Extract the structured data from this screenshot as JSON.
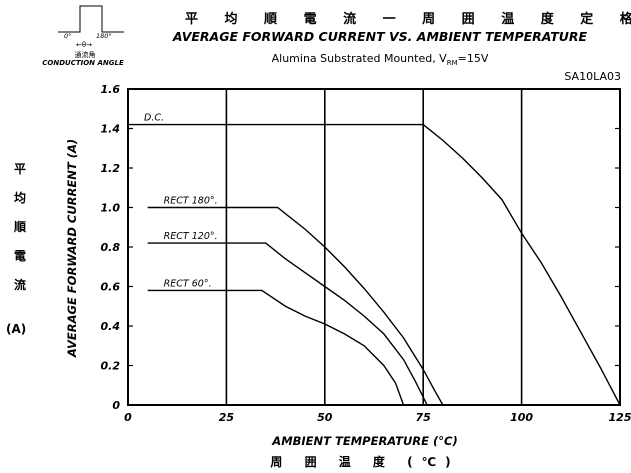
{
  "chart_data": {
    "type": "line",
    "title_jp": "平 均 順 電 流 一 周 囲 温 度 定 格",
    "title": "AVERAGE FORWARD CURRENT VS. AMBIENT TEMPERATURE",
    "subtitle_prefix": "Alumina Substrated Mounted, V",
    "subtitle_sub": "RM",
    "subtitle_suffix": "=15V",
    "model": "SA10LA03",
    "xlabel": "AMBIENT TEMPERATURE (°C)",
    "xlabel_jp": "周 囲 温 度 (℃)",
    "ylabel": "AVERAGE FORWARD CURRENT (A)",
    "ylabel_jp": [
      "平",
      "均",
      "順",
      "電",
      "流"
    ],
    "ylabel_jp_unit": "(A)",
    "xlim": [
      0,
      125
    ],
    "ylim": [
      0,
      1.6
    ],
    "xticks": [
      "0",
      "25",
      "50",
      "75",
      "100",
      "125"
    ],
    "yticks": [
      "0",
      "0.2",
      "0.4",
      "0.6",
      "0.8",
      "1.0",
      "1.2",
      "1.4",
      "1.6"
    ],
    "grid": "vertical",
    "inset": {
      "deg_start": "0°",
      "deg_end": "180°",
      "theta": "←θ→",
      "label_jp": "通流角",
      "label_en": "CONDUCTION ANGLE"
    },
    "series": [
      {
        "name": "D.C.",
        "x": [
          0,
          75,
          80,
          85,
          90,
          95,
          100,
          105,
          110,
          115,
          120,
          125
        ],
        "y": [
          1.42,
          1.42,
          1.34,
          1.25,
          1.15,
          1.04,
          0.87,
          0.72,
          0.55,
          0.37,
          0.19,
          0.0
        ]
      },
      {
        "name": "RECT 180°.",
        "x": [
          5,
          38,
          45,
          50,
          55,
          60,
          65,
          70,
          75,
          78,
          80
        ],
        "y": [
          1.0,
          1.0,
          0.89,
          0.8,
          0.7,
          0.59,
          0.47,
          0.34,
          0.18,
          0.07,
          0.0
        ]
      },
      {
        "name": "RECT 120°.",
        "x": [
          5,
          35,
          40,
          45,
          50,
          55,
          60,
          65,
          70,
          73,
          76
        ],
        "y": [
          0.82,
          0.82,
          0.74,
          0.67,
          0.6,
          0.53,
          0.45,
          0.36,
          0.23,
          0.12,
          0.0
        ]
      },
      {
        "name": "RECT 60°.",
        "x": [
          5,
          34,
          40,
          45,
          50,
          55,
          60,
          65,
          68,
          70
        ],
        "y": [
          0.58,
          0.58,
          0.5,
          0.45,
          0.41,
          0.36,
          0.3,
          0.2,
          0.11,
          0.0
        ]
      }
    ]
  }
}
